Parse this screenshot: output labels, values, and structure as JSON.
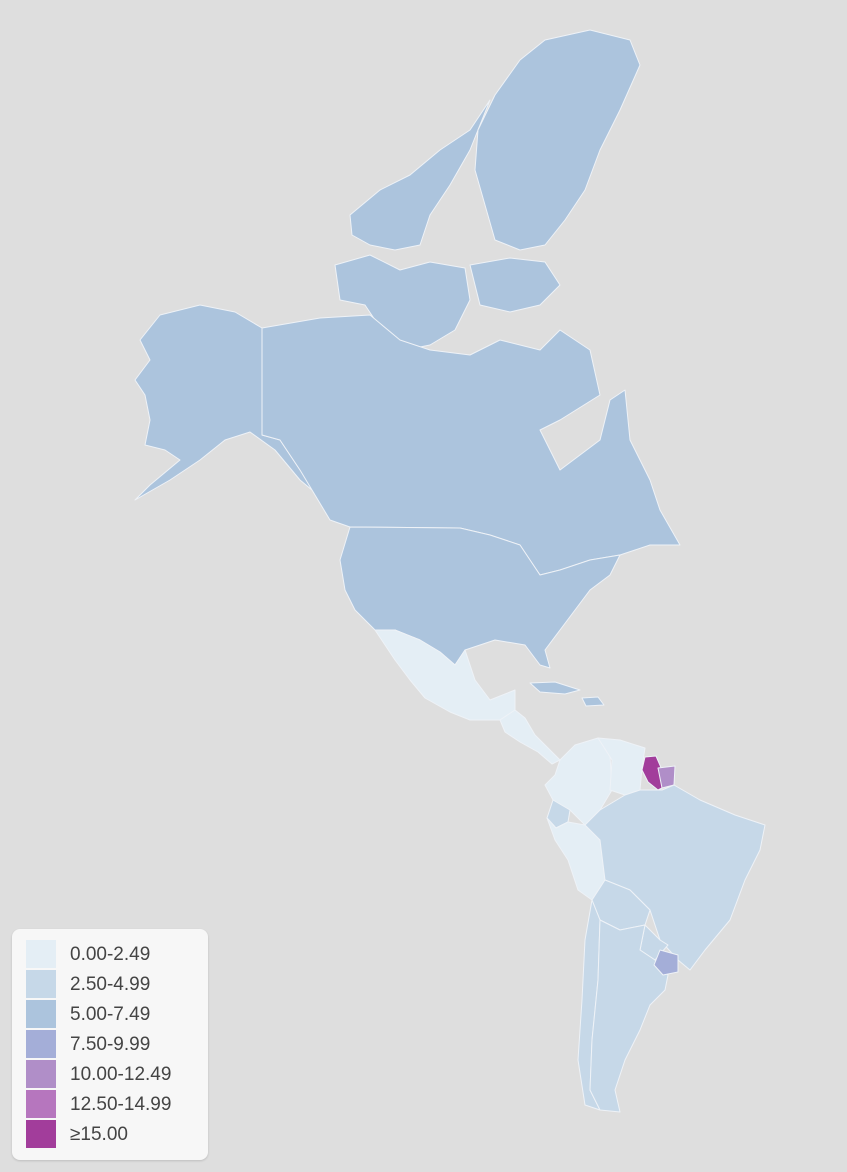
{
  "legend": {
    "items": [
      {
        "label": "0.00-2.49",
        "color": "#e4eef5"
      },
      {
        "label": "2.50-4.99",
        "color": "#c6d8e8"
      },
      {
        "label": "5.00-7.49",
        "color": "#acc4dd"
      },
      {
        "label": "7.50-9.99",
        "color": "#a4aed8"
      },
      {
        "label": "10.00-12.49",
        "color": "#b08ec8"
      },
      {
        "label": "12.50-14.99",
        "color": "#b676be"
      },
      {
        "label": "≥15.00",
        "color": "#a23d9b"
      }
    ]
  },
  "regions": [
    {
      "name": "canada-arctic-islands",
      "bin": 2
    },
    {
      "name": "greenland",
      "bin": 2
    },
    {
      "name": "alaska",
      "bin": 2
    },
    {
      "name": "canada",
      "bin": 2
    },
    {
      "name": "united-states",
      "bin": 2
    },
    {
      "name": "mexico",
      "bin": 0
    },
    {
      "name": "cuba",
      "bin": 2
    },
    {
      "name": "hispaniola",
      "bin": 2
    },
    {
      "name": "central-america",
      "bin": 0
    },
    {
      "name": "colombia",
      "bin": 0
    },
    {
      "name": "venezuela",
      "bin": 0
    },
    {
      "name": "guyana",
      "bin": 6
    },
    {
      "name": "suriname",
      "bin": 4
    },
    {
      "name": "ecuador",
      "bin": 1
    },
    {
      "name": "peru",
      "bin": 0
    },
    {
      "name": "brazil",
      "bin": 1
    },
    {
      "name": "bolivia",
      "bin": 1
    },
    {
      "name": "paraguay",
      "bin": 1
    },
    {
      "name": "chile",
      "bin": 1
    },
    {
      "name": "argentina",
      "bin": 1
    },
    {
      "name": "uruguay",
      "bin": 3
    }
  ]
}
